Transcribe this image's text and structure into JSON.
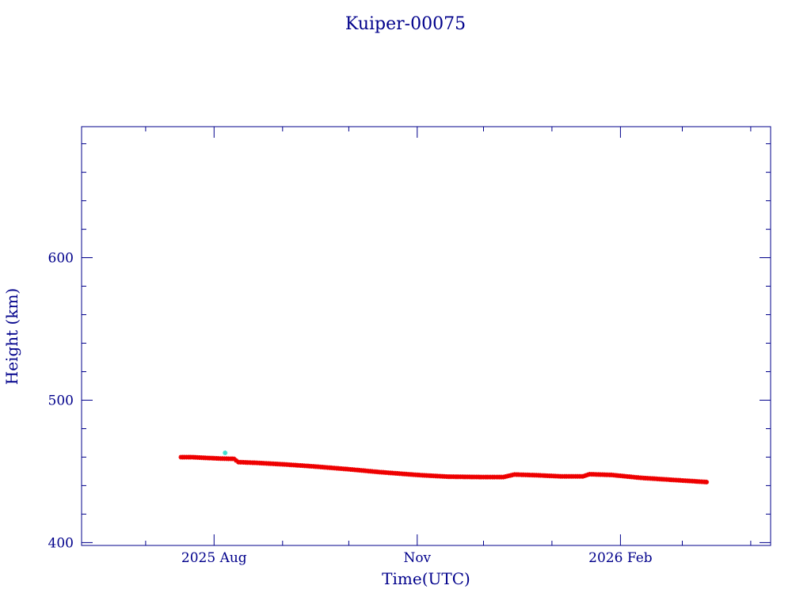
{
  "colors": {
    "axis": "#00008b",
    "main_series": "#ee0000",
    "outlier": "#40e0d0",
    "background": "#ffffff"
  },
  "chart_data": {
    "type": "scatter",
    "title": "Kuiper-00075",
    "xlabel": "Time(UTC)",
    "ylabel": "Height (km)",
    "xlim": [
      "2025-06-02",
      "2026-04-10"
    ],
    "ylim": [
      398,
      692
    ],
    "x_ticks": [
      {
        "date": "2025-08-01",
        "label": "2025 Aug"
      },
      {
        "date": "2025-11-01",
        "label": "Nov"
      },
      {
        "date": "2026-02-01",
        "label": "2026 Feb"
      }
    ],
    "x_minor_ticks": [
      "2025-07-01",
      "2025-09-01",
      "2025-10-01",
      "2025-12-01",
      "2026-01-01",
      "2026-03-01",
      "2026-04-01"
    ],
    "y_ticks": [
      {
        "value": 400,
        "label": "400"
      },
      {
        "value": 500,
        "label": "500"
      },
      {
        "value": 600,
        "label": "600"
      }
    ],
    "y_minor_step": 20,
    "grid": false,
    "series": [
      {
        "color": "#ee0000",
        "points": [
          {
            "x": "2025-07-17",
            "y": 460
          },
          {
            "x": "2025-07-22",
            "y": 460
          },
          {
            "x": "2025-07-28",
            "y": 459.5
          },
          {
            "x": "2025-08-04",
            "y": 459
          },
          {
            "x": "2025-08-10",
            "y": 458.8
          },
          {
            "x": "2025-08-12",
            "y": 456.5
          },
          {
            "x": "2025-08-20",
            "y": 456
          },
          {
            "x": "2025-09-01",
            "y": 455
          },
          {
            "x": "2025-09-15",
            "y": 453.5
          },
          {
            "x": "2025-10-01",
            "y": 451.5
          },
          {
            "x": "2025-10-15",
            "y": 449.5
          },
          {
            "x": "2025-11-01",
            "y": 447.5
          },
          {
            "x": "2025-11-15",
            "y": 446.3
          },
          {
            "x": "2025-12-01",
            "y": 446
          },
          {
            "x": "2025-12-10",
            "y": 446
          },
          {
            "x": "2025-12-15",
            "y": 447.8
          },
          {
            "x": "2025-12-25",
            "y": 447.3
          },
          {
            "x": "2026-01-05",
            "y": 446.5
          },
          {
            "x": "2026-01-15",
            "y": 446.5
          },
          {
            "x": "2026-01-18",
            "y": 448
          },
          {
            "x": "2026-01-28",
            "y": 447.5
          },
          {
            "x": "2026-02-10",
            "y": 445.5
          },
          {
            "x": "2026-02-25",
            "y": 444
          },
          {
            "x": "2026-03-12",
            "y": 442.5
          }
        ]
      },
      {
        "color": "#40e0d0",
        "points": [
          {
            "x": "2025-08-06",
            "y": 463
          }
        ]
      }
    ]
  }
}
